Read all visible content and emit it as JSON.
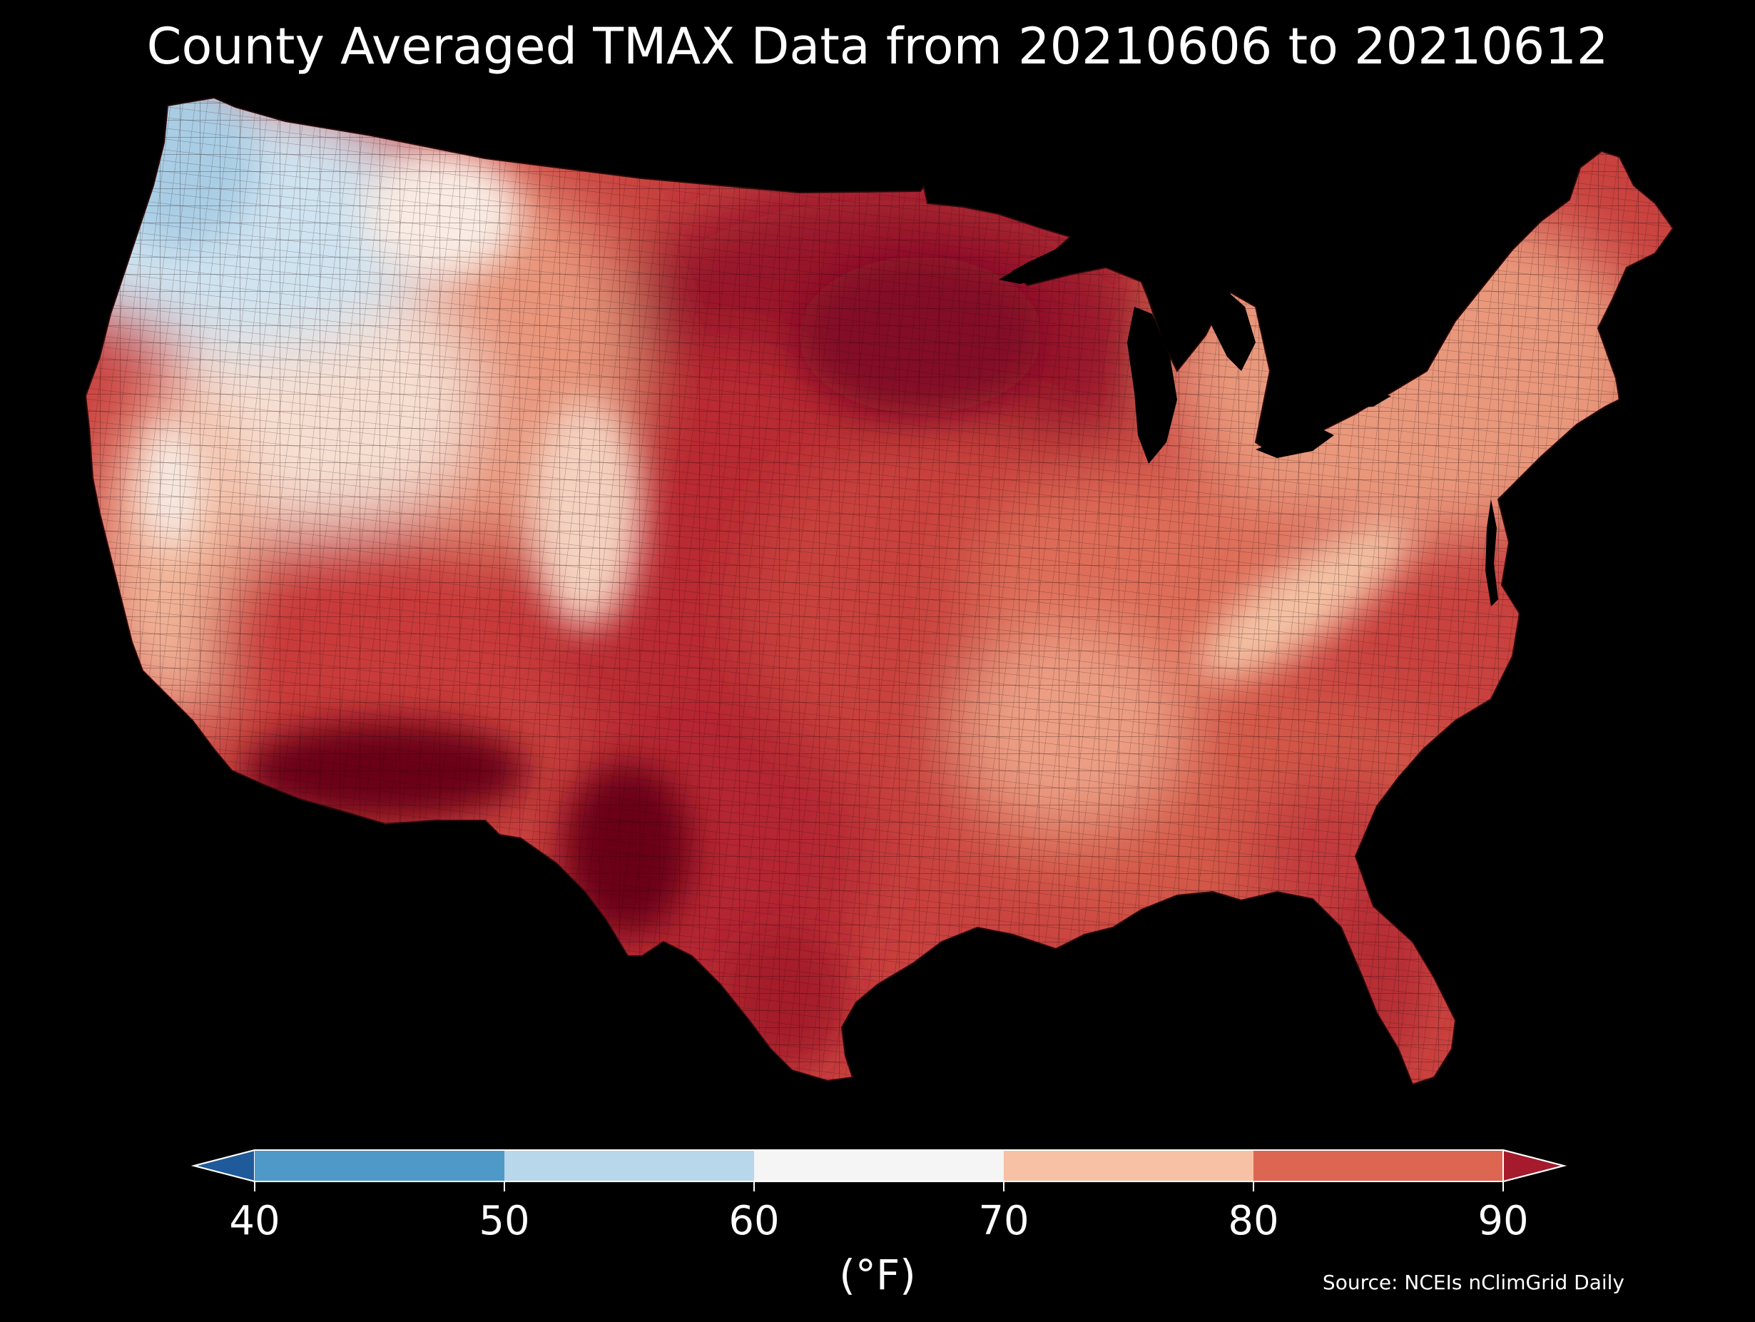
{
  "title": "County Averaged TMAX Data from 20210606 to 20210612",
  "colorbar": {
    "units": "(°F)",
    "ticks": [
      "40",
      "50",
      "60",
      "70",
      "80",
      "90"
    ],
    "bins": [
      {
        "range": [
          40,
          50
        ],
        "color": "#4f99c8"
      },
      {
        "range": [
          50,
          60
        ],
        "color": "#b8d7ea"
      },
      {
        "range": [
          60,
          70
        ],
        "color": "#f5f5f5"
      },
      {
        "range": [
          70,
          80
        ],
        "color": "#f7c1a5"
      },
      {
        "range": [
          80,
          90
        ],
        "color": "#dd6653"
      }
    ],
    "under_color": "#1f5a9a",
    "over_color": "#a51a2c",
    "extend": "both"
  },
  "source": "Source: NCEIs nClimGrid Daily",
  "map": {
    "region": "Contiguous United States",
    "background": "#000000",
    "county_border_color": "#1a0505",
    "regional_colors": {
      "pacific_northwest": "#cfe3f0",
      "great_basin": "#f6dfd2",
      "southwest": "#c93a3b",
      "desert_southwest": "#6b0418",
      "plains": "#b92c32",
      "upper_midwest": "#98172b",
      "appalachia": "#f4c2a4",
      "northeast": "#e9987c",
      "southeast": "#d45a4a"
    }
  }
}
